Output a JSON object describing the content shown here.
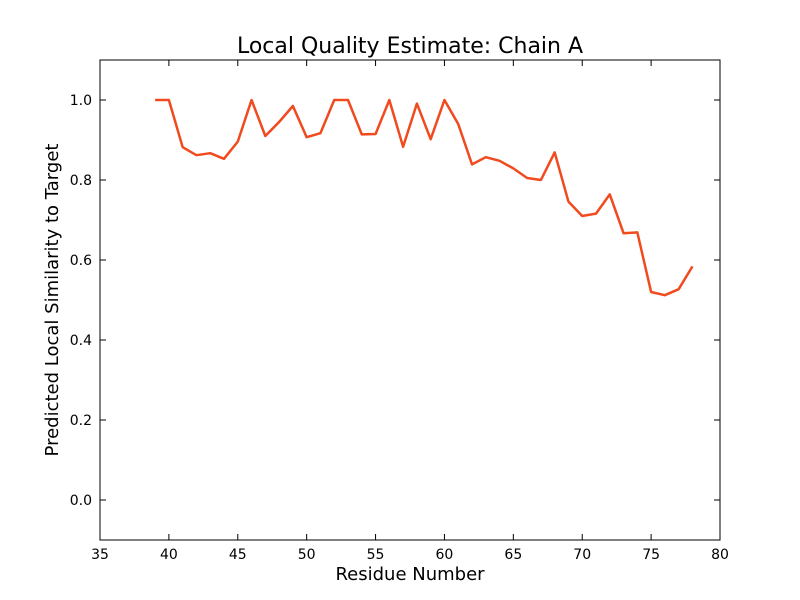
{
  "chart_data": {
    "type": "line",
    "title": "Local Quality Estimate: Chain A",
    "xlabel": "Residue Number",
    "ylabel": "Predicted Local Similarity to Target",
    "xlim": [
      35,
      80
    ],
    "ylim": [
      -0.1,
      1.1
    ],
    "xticks": [
      35,
      40,
      45,
      50,
      55,
      60,
      65,
      70,
      75,
      80
    ],
    "xtick_labels": [
      "35",
      "40",
      "45",
      "50",
      "55",
      "60",
      "65",
      "70",
      "75",
      "80"
    ],
    "yticks": [
      0.0,
      0.2,
      0.4,
      0.6,
      0.8,
      1.0
    ],
    "ytick_labels": [
      "0.0",
      "0.2",
      "0.4",
      "0.6",
      "0.8",
      "1.0"
    ],
    "grid": false,
    "series": [
      {
        "color": "#f04a1e",
        "x": [
          39,
          40,
          41,
          42,
          43,
          44,
          45,
          46,
          47,
          48,
          49,
          50,
          51,
          52,
          53,
          54,
          55,
          56,
          57,
          58,
          59,
          60,
          61,
          62,
          63,
          64,
          65,
          66,
          67,
          68,
          69,
          70,
          71,
          72,
          73,
          74,
          75,
          76,
          77,
          78
        ],
        "y": [
          1.0,
          1.0,
          0.882,
          0.862,
          0.867,
          0.853,
          0.896,
          1.0,
          0.91,
          0.945,
          0.985,
          0.907,
          0.917,
          1.0,
          1.0,
          0.914,
          0.915,
          1.0,
          0.883,
          0.991,
          0.902,
          1.0,
          0.94,
          0.839,
          0.857,
          0.848,
          0.829,
          0.805,
          0.8,
          0.869,
          0.746,
          0.71,
          0.716,
          0.764,
          0.667,
          0.669,
          0.52,
          0.512,
          0.527,
          0.584
        ]
      }
    ]
  }
}
